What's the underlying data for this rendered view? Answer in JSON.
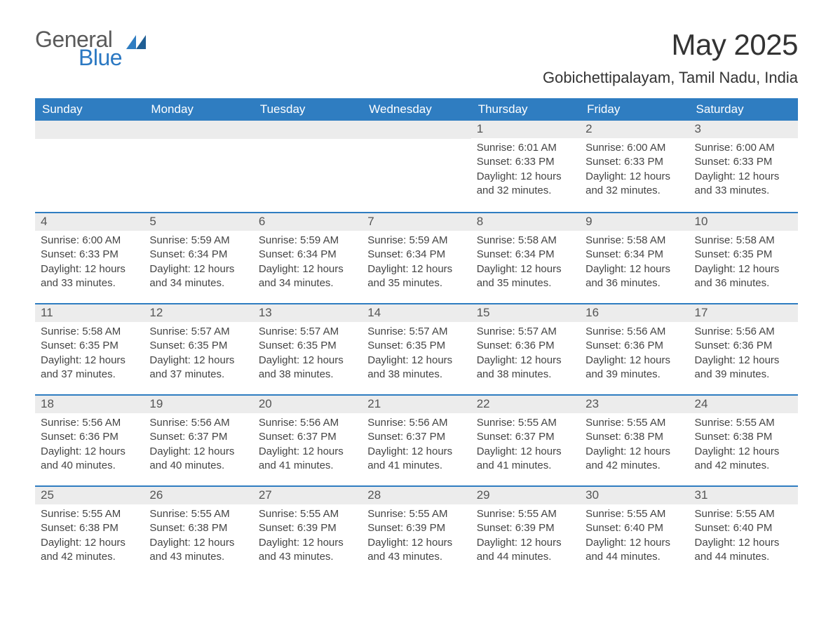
{
  "brand": {
    "part1": "General",
    "part2": "Blue",
    "icon_color": "#2f7dc1"
  },
  "title": "May 2025",
  "location": "Gobichettipalayam, Tamil Nadu, India",
  "colors": {
    "header_bg": "#2f7dc1",
    "header_text": "#ffffff",
    "daynum_bg": "#ececec",
    "border_top": "#2f7dc1",
    "body_text": "#444444"
  },
  "day_headers": [
    "Sunday",
    "Monday",
    "Tuesday",
    "Wednesday",
    "Thursday",
    "Friday",
    "Saturday"
  ],
  "weeks": [
    [
      null,
      null,
      null,
      null,
      {
        "n": "1",
        "sunrise": "6:01 AM",
        "sunset": "6:33 PM",
        "daylight": "12 hours and 32 minutes."
      },
      {
        "n": "2",
        "sunrise": "6:00 AM",
        "sunset": "6:33 PM",
        "daylight": "12 hours and 32 minutes."
      },
      {
        "n": "3",
        "sunrise": "6:00 AM",
        "sunset": "6:33 PM",
        "daylight": "12 hours and 33 minutes."
      }
    ],
    [
      {
        "n": "4",
        "sunrise": "6:00 AM",
        "sunset": "6:33 PM",
        "daylight": "12 hours and 33 minutes."
      },
      {
        "n": "5",
        "sunrise": "5:59 AM",
        "sunset": "6:34 PM",
        "daylight": "12 hours and 34 minutes."
      },
      {
        "n": "6",
        "sunrise": "5:59 AM",
        "sunset": "6:34 PM",
        "daylight": "12 hours and 34 minutes."
      },
      {
        "n": "7",
        "sunrise": "5:59 AM",
        "sunset": "6:34 PM",
        "daylight": "12 hours and 35 minutes."
      },
      {
        "n": "8",
        "sunrise": "5:58 AM",
        "sunset": "6:34 PM",
        "daylight": "12 hours and 35 minutes."
      },
      {
        "n": "9",
        "sunrise": "5:58 AM",
        "sunset": "6:34 PM",
        "daylight": "12 hours and 36 minutes."
      },
      {
        "n": "10",
        "sunrise": "5:58 AM",
        "sunset": "6:35 PM",
        "daylight": "12 hours and 36 minutes."
      }
    ],
    [
      {
        "n": "11",
        "sunrise": "5:58 AM",
        "sunset": "6:35 PM",
        "daylight": "12 hours and 37 minutes."
      },
      {
        "n": "12",
        "sunrise": "5:57 AM",
        "sunset": "6:35 PM",
        "daylight": "12 hours and 37 minutes."
      },
      {
        "n": "13",
        "sunrise": "5:57 AM",
        "sunset": "6:35 PM",
        "daylight": "12 hours and 38 minutes."
      },
      {
        "n": "14",
        "sunrise": "5:57 AM",
        "sunset": "6:35 PM",
        "daylight": "12 hours and 38 minutes."
      },
      {
        "n": "15",
        "sunrise": "5:57 AM",
        "sunset": "6:36 PM",
        "daylight": "12 hours and 38 minutes."
      },
      {
        "n": "16",
        "sunrise": "5:56 AM",
        "sunset": "6:36 PM",
        "daylight": "12 hours and 39 minutes."
      },
      {
        "n": "17",
        "sunrise": "5:56 AM",
        "sunset": "6:36 PM",
        "daylight": "12 hours and 39 minutes."
      }
    ],
    [
      {
        "n": "18",
        "sunrise": "5:56 AM",
        "sunset": "6:36 PM",
        "daylight": "12 hours and 40 minutes."
      },
      {
        "n": "19",
        "sunrise": "5:56 AM",
        "sunset": "6:37 PM",
        "daylight": "12 hours and 40 minutes."
      },
      {
        "n": "20",
        "sunrise": "5:56 AM",
        "sunset": "6:37 PM",
        "daylight": "12 hours and 41 minutes."
      },
      {
        "n": "21",
        "sunrise": "5:56 AM",
        "sunset": "6:37 PM",
        "daylight": "12 hours and 41 minutes."
      },
      {
        "n": "22",
        "sunrise": "5:55 AM",
        "sunset": "6:37 PM",
        "daylight": "12 hours and 41 minutes."
      },
      {
        "n": "23",
        "sunrise": "5:55 AM",
        "sunset": "6:38 PM",
        "daylight": "12 hours and 42 minutes."
      },
      {
        "n": "24",
        "sunrise": "5:55 AM",
        "sunset": "6:38 PM",
        "daylight": "12 hours and 42 minutes."
      }
    ],
    [
      {
        "n": "25",
        "sunrise": "5:55 AM",
        "sunset": "6:38 PM",
        "daylight": "12 hours and 42 minutes."
      },
      {
        "n": "26",
        "sunrise": "5:55 AM",
        "sunset": "6:38 PM",
        "daylight": "12 hours and 43 minutes."
      },
      {
        "n": "27",
        "sunrise": "5:55 AM",
        "sunset": "6:39 PM",
        "daylight": "12 hours and 43 minutes."
      },
      {
        "n": "28",
        "sunrise": "5:55 AM",
        "sunset": "6:39 PM",
        "daylight": "12 hours and 43 minutes."
      },
      {
        "n": "29",
        "sunrise": "5:55 AM",
        "sunset": "6:39 PM",
        "daylight": "12 hours and 44 minutes."
      },
      {
        "n": "30",
        "sunrise": "5:55 AM",
        "sunset": "6:40 PM",
        "daylight": "12 hours and 44 minutes."
      },
      {
        "n": "31",
        "sunrise": "5:55 AM",
        "sunset": "6:40 PM",
        "daylight": "12 hours and 44 minutes."
      }
    ]
  ],
  "labels": {
    "sunrise": "Sunrise: ",
    "sunset": "Sunset: ",
    "daylight": "Daylight: "
  }
}
